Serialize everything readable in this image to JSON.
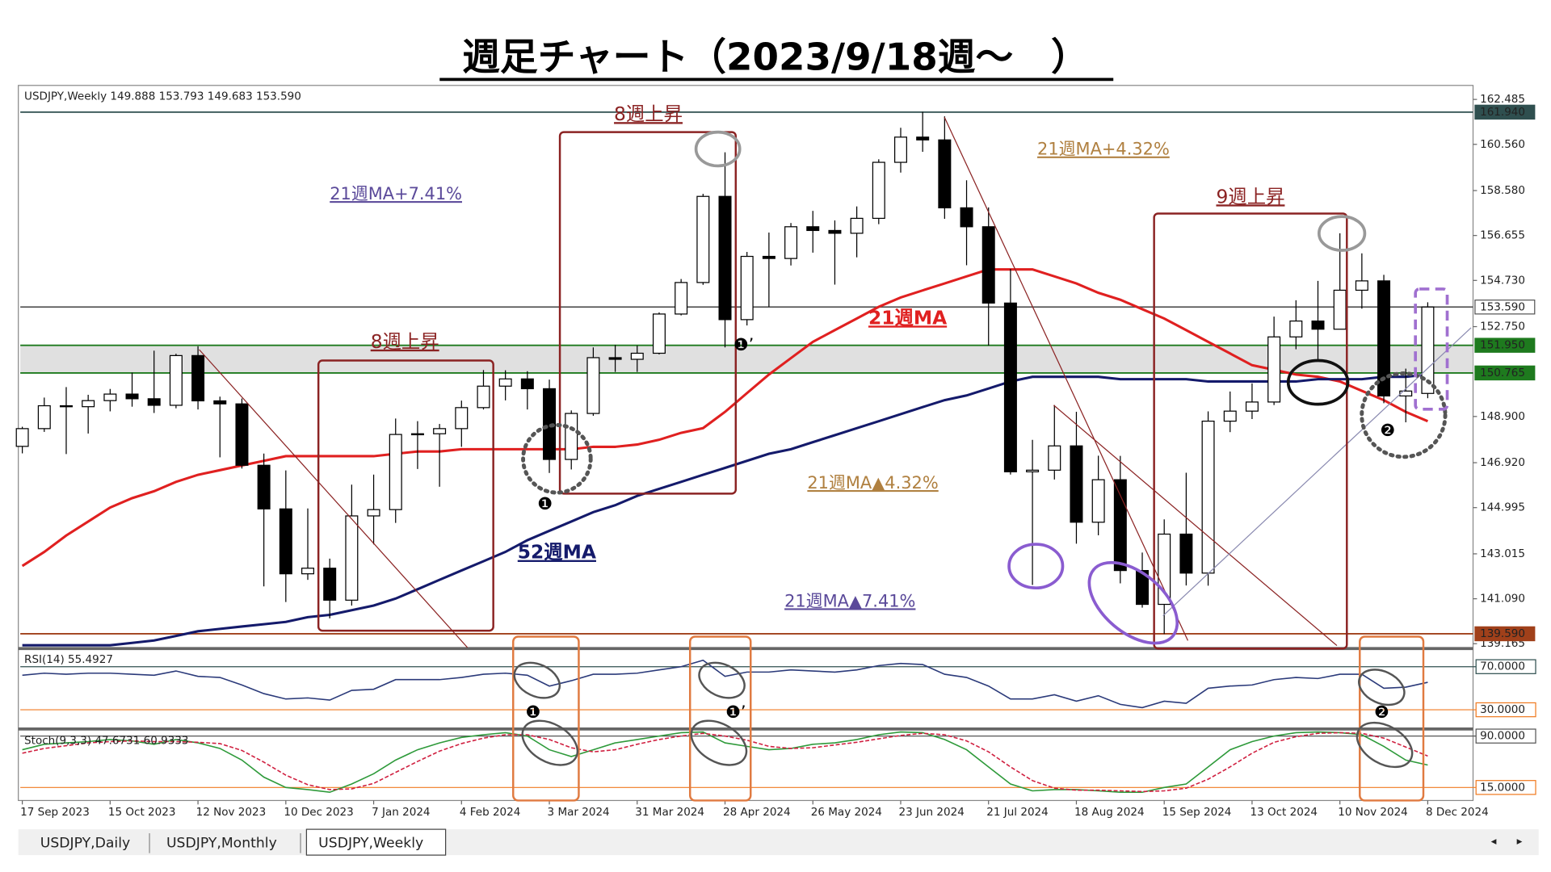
{
  "title": "週足チャート（2023/9/18週〜　）",
  "tabs": [
    "USDJPY,Daily",
    "USDJPY,Monthly",
    "USDJPY,Weekly"
  ],
  "chart_data": [
    {
      "type": "candlestick",
      "header": "USDJPY,Weekly  149.888 153.793 149.683 153.590",
      "categories": [
        "17 Sep 2023",
        null,
        null,
        null,
        "15 Oct 2023",
        null,
        null,
        null,
        "12 Nov 2023",
        null,
        null,
        null,
        "10 Dec 2023",
        null,
        null,
        null,
        "7 Jan 2024",
        null,
        null,
        null,
        "4 Feb 2024",
        null,
        null,
        null,
        "3 Mar 2024",
        null,
        null,
        null,
        "31 Mar 2024",
        null,
        null,
        null,
        "28 Apr 2024",
        null,
        null,
        null,
        "26 May 2024",
        null,
        null,
        null,
        "23 Jun 2024",
        null,
        null,
        null,
        "21 Jul 2024",
        null,
        null,
        null,
        "18 Aug 2024",
        null,
        null,
        null,
        "15 Sep 2024",
        null,
        null,
        null,
        "13 Oct 2024",
        null,
        null,
        null,
        "10 Nov 2024",
        null,
        null,
        null,
        "8 Dec 2024"
      ],
      "open": [
        147.62,
        148.38,
        149.36,
        149.32,
        149.58,
        149.86,
        149.66,
        149.38,
        151.51,
        149.57,
        149.44,
        146.81,
        144.94,
        142.16,
        142.4,
        141.03,
        144.64,
        144.91,
        148.13,
        148.16,
        148.38,
        149.28,
        150.2,
        150.51,
        150.09,
        147.06,
        149.03,
        151.42,
        151.35,
        151.61,
        153.29,
        154.64,
        158.33,
        153.05,
        155.76,
        155.67,
        157.03,
        156.87,
        156.75,
        157.39,
        159.79,
        160.87,
        160.75,
        157.84,
        157.03,
        153.76,
        146.53,
        146.6,
        147.64,
        144.37,
        146.19,
        142.3,
        140.85,
        143.86,
        142.19,
        148.7,
        149.13,
        149.52,
        152.31,
        152.99,
        152.64,
        154.31,
        154.71,
        149.78,
        149.888
      ],
      "high": [
        148.46,
        149.71,
        150.16,
        149.83,
        150.08,
        150.78,
        151.72,
        151.59,
        151.91,
        149.75,
        149.67,
        147.31,
        146.59,
        144.96,
        142.81,
        145.98,
        146.41,
        148.81,
        148.7,
        148.58,
        149.58,
        150.89,
        150.88,
        150.84,
        150.48,
        149.16,
        151.86,
        151.97,
        151.94,
        153.36,
        154.79,
        158.44,
        160.22,
        155.95,
        156.78,
        157.19,
        157.71,
        157.3,
        157.9,
        159.92,
        161.27,
        161.95,
        161.76,
        159.02,
        157.86,
        155.22,
        147.9,
        149.39,
        149.1,
        147.22,
        147.21,
        143.07,
        144.49,
        146.49,
        149.12,
        149.97,
        150.32,
        153.18,
        153.88,
        154.71,
        156.75,
        155.89,
        154.97,
        150.95,
        153.793
      ],
      "low": [
        147.32,
        148.24,
        147.29,
        148.17,
        149.12,
        149.32,
        149.05,
        149.25,
        149.2,
        147.15,
        146.67,
        141.62,
        140.95,
        141.9,
        140.25,
        140.8,
        143.42,
        144.34,
        146.65,
        145.89,
        147.6,
        149.2,
        149.59,
        149.2,
        146.48,
        146.63,
        148.93,
        150.81,
        150.81,
        151.56,
        153.23,
        154.54,
        151.86,
        152.8,
        153.6,
        155.37,
        155.92,
        154.55,
        155.72,
        157.14,
        159.35,
        160.24,
        157.37,
        155.38,
        151.94,
        146.41,
        141.68,
        146.2,
        143.45,
        143.81,
        141.75,
        140.71,
        139.58,
        141.66,
        141.65,
        148.23,
        148.79,
        149.39,
        151.78,
        151.28,
        152.64,
        153.52,
        149.47,
        148.65,
        149.683
      ],
      "close": [
        148.38,
        149.36,
        149.32,
        149.58,
        149.86,
        149.66,
        149.38,
        151.51,
        149.57,
        149.44,
        146.81,
        144.94,
        142.16,
        142.4,
        141.03,
        144.64,
        144.91,
        148.13,
        148.16,
        148.38,
        149.28,
        150.2,
        150.51,
        150.09,
        147.06,
        149.03,
        151.42,
        151.35,
        151.61,
        153.29,
        154.64,
        158.33,
        153.05,
        155.76,
        155.67,
        157.03,
        156.87,
        156.75,
        157.39,
        159.79,
        160.87,
        160.75,
        157.84,
        157.03,
        153.76,
        146.53,
        146.6,
        147.64,
        144.37,
        146.19,
        142.3,
        140.85,
        143.86,
        142.19,
        148.7,
        149.13,
        149.52,
        152.31,
        152.99,
        152.64,
        154.31,
        154.71,
        149.78,
        149.99,
        153.59
      ],
      "series": [
        {
          "name": "21週MA",
          "color": "#e02020",
          "values": [
            142.5,
            143.1,
            143.8,
            144.4,
            145.0,
            145.4,
            145.7,
            146.1,
            146.4,
            146.6,
            146.8,
            147.0,
            147.2,
            147.2,
            147.2,
            147.2,
            147.2,
            147.3,
            147.4,
            147.4,
            147.5,
            147.5,
            147.5,
            147.5,
            147.5,
            147.5,
            147.6,
            147.6,
            147.7,
            147.9,
            148.2,
            148.4,
            149.1,
            149.9,
            150.7,
            151.4,
            152.1,
            152.6,
            153.1,
            153.6,
            154.0,
            154.3,
            154.6,
            154.9,
            155.2,
            155.2,
            155.2,
            154.9,
            154.6,
            154.2,
            153.9,
            153.5,
            153.1,
            152.6,
            152.1,
            151.6,
            151.1,
            150.9,
            150.7,
            150.6,
            150.4,
            150.0,
            149.6,
            149.1,
            148.7
          ]
        },
        {
          "name": "52週MA",
          "color": "#141a6b",
          "values": [
            139.1,
            139.1,
            139.1,
            139.1,
            139.1,
            139.2,
            139.3,
            139.5,
            139.7,
            139.8,
            139.9,
            140.0,
            140.1,
            140.3,
            140.4,
            140.6,
            140.8,
            141.1,
            141.5,
            141.9,
            142.3,
            142.7,
            143.1,
            143.6,
            144.0,
            144.4,
            144.8,
            145.1,
            145.5,
            145.8,
            146.1,
            146.4,
            146.7,
            147.0,
            147.3,
            147.5,
            147.8,
            148.1,
            148.4,
            148.7,
            149.0,
            149.3,
            149.6,
            149.8,
            150.1,
            150.4,
            150.6,
            150.6,
            150.6,
            150.6,
            150.5,
            150.5,
            150.5,
            150.5,
            150.4,
            150.4,
            150.4,
            150.4,
            150.4,
            150.5,
            150.5,
            150.5,
            150.6,
            150.6,
            150.7
          ]
        }
      ],
      "ylim": [
        139.0,
        163.0
      ],
      "yticks": [
        {
          "value": 162.485,
          "label": "162.485"
        },
        {
          "value": 160.56,
          "label": "160.560"
        },
        {
          "value": 158.58,
          "label": "158.580"
        },
        {
          "value": 156.655,
          "label": "156.655"
        },
        {
          "value": 154.73,
          "label": "154.730"
        },
        {
          "value": 152.75,
          "label": "152.750"
        },
        {
          "value": 148.9,
          "label": "148.900"
        },
        {
          "value": 146.92,
          "label": "146.920"
        },
        {
          "value": 144.995,
          "label": "144.995"
        },
        {
          "value": 143.015,
          "label": "143.015"
        },
        {
          "value": 141.09,
          "label": "141.090"
        },
        {
          "value": 139.165,
          "label": "139.165"
        }
      ],
      "levels": [
        {
          "value": 161.94,
          "label": "161.940",
          "color": "#2f4f4f"
        },
        {
          "value": 153.59,
          "label": "153.590",
          "color": "#555555"
        },
        {
          "value": 151.95,
          "label": "151.950",
          "color": "#1e7a1e"
        },
        {
          "value": 150.765,
          "label": "150.765",
          "color": "#1e7a1e"
        },
        {
          "value": 139.59,
          "label": "139.590",
          "color": "#a0401a"
        }
      ],
      "bull_color": "#ffffff",
      "bear_color": "#000000",
      "annotations": [
        "8週上昇",
        "8週上昇",
        "9週上昇",
        "21週MA+7.41%",
        "21週MA+4.32%",
        "21週MA▲4.32%",
        "21週MA▲7.41%",
        "❶",
        "❶’",
        "❷"
      ]
    },
    {
      "type": "line",
      "header": "RSI(14) 55.4927",
      "series": [
        {
          "color": "#2b3a7a",
          "values": [
            62,
            64,
            63,
            64,
            64,
            63,
            62,
            66,
            61,
            60,
            53,
            45,
            40,
            41,
            39,
            48,
            49,
            58,
            58,
            58,
            60,
            63,
            64,
            62,
            52,
            57,
            63,
            63,
            64,
            67,
            70,
            76,
            61,
            65,
            65,
            67,
            66,
            65,
            67,
            71,
            73,
            72,
            63,
            60,
            52,
            40,
            40,
            44,
            38,
            43,
            35,
            32,
            38,
            36,
            50,
            52,
            53,
            58,
            60,
            59,
            63,
            63,
            50,
            51,
            55.49
          ]
        }
      ],
      "ylim": [
        14,
        85
      ],
      "yticks": [
        {
          "value": 70,
          "label": "70.0000",
          "color": "#2f4f4f"
        },
        {
          "value": 30,
          "label": "30.0000",
          "color": "#f07a20"
        }
      ],
      "annotations": [
        "❶",
        "❶’",
        "❷"
      ]
    },
    {
      "type": "line",
      "header": "Stoch(9,3,3) 47.6731 60.9333",
      "series": [
        {
          "color": "#2e9a3a",
          "values": [
            70,
            78,
            80,
            82,
            85,
            83,
            78,
            85,
            80,
            72,
            55,
            30,
            15,
            12,
            8,
            20,
            35,
            55,
            70,
            80,
            88,
            92,
            95,
            90,
            70,
            60,
            70,
            80,
            85,
            90,
            95,
            96,
            80,
            75,
            70,
            72,
            78,
            80,
            85,
            92,
            96,
            95,
            85,
            70,
            45,
            20,
            10,
            12,
            12,
            10,
            8,
            8,
            15,
            20,
            45,
            70,
            82,
            90,
            95,
            96,
            95,
            92,
            75,
            55,
            47.67
          ]
        },
        {
          "color": "#d02040",
          "dashed": true,
          "values": [
            65,
            72,
            76,
            80,
            82,
            83,
            82,
            82,
            81,
            79,
            69,
            52,
            33,
            19,
            12,
            13,
            21,
            37,
            53,
            68,
            79,
            87,
            92,
            92,
            85,
            73,
            67,
            70,
            78,
            85,
            90,
            94,
            90,
            84,
            75,
            72,
            73,
            77,
            81,
            86,
            91,
            94,
            92,
            83,
            67,
            45,
            25,
            14,
            11,
            11,
            10,
            9,
            10,
            14,
            27,
            45,
            65,
            81,
            89,
            94,
            95,
            94,
            87,
            74,
            60.93
          ]
        }
      ],
      "ylim": [
        -4,
        96
      ],
      "yticks": [
        {
          "value": 90,
          "label": "90.0000",
          "color": "#555555"
        },
        {
          "value": 15,
          "label": "15.0000",
          "color": "#f07a20"
        }
      ]
    }
  ]
}
